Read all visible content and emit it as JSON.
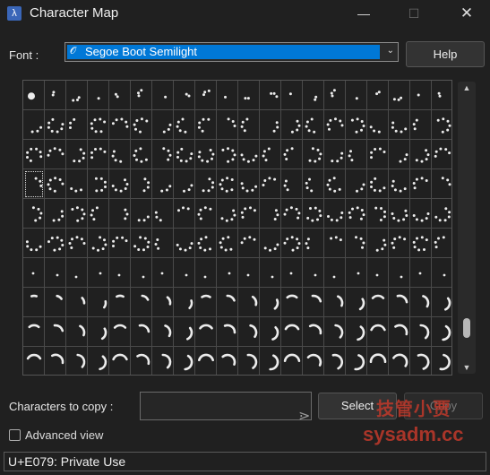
{
  "window": {
    "title": "Character Map",
    "icon": "app-icon",
    "min_glyph": "—",
    "max_glyph": "☐",
    "close_glyph": "✕"
  },
  "font": {
    "label": "Font :",
    "selected": "Segoe Boot Semilight",
    "help_label": "Help"
  },
  "grid": {
    "rows": 10,
    "cols": 20,
    "selected_row": 3,
    "selected_col": 0
  },
  "copy": {
    "label": "Characters to copy :",
    "value": "",
    "select_label": "Select",
    "copy_label": "Copy"
  },
  "advanced": {
    "label": "Advanced view",
    "checked": false
  },
  "status": {
    "text": "U+E079: Private Use"
  },
  "watermark": {
    "line1": "技管小贾",
    "line2": "sysadm.cc"
  },
  "colors": {
    "accent": "#0078d7",
    "watermark": "#c0392b"
  }
}
